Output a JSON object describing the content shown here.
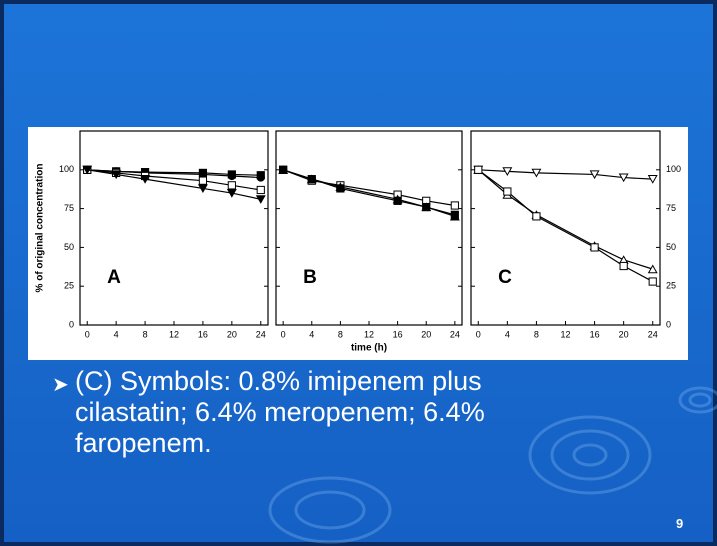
{
  "slide": {
    "bullet": "(C) Symbols:  0.8% imipenem plus cilastatin; 6.4% meropenem; 6.4% faropenem.",
    "page_number": "9"
  },
  "chart_data": [
    {
      "type": "line",
      "label": "A",
      "ylabel": "% of original concentration",
      "ytick_labels": "left",
      "xlim": [
        -1,
        25
      ],
      "xticks": [
        0,
        4,
        8,
        12,
        16,
        20,
        24
      ],
      "ylim": [
        0,
        125
      ],
      "yticks": [
        0,
        25,
        50,
        75,
        100
      ],
      "series": [
        {
          "marker": "square",
          "filled": true,
          "color": "#000000",
          "x": [
            0,
            4,
            8,
            16,
            20,
            24
          ],
          "values": [
            100,
            99,
            98.5,
            98,
            97,
            96.5
          ]
        },
        {
          "marker": "circle",
          "filled": true,
          "color": "#000000",
          "x": [
            0,
            4,
            8,
            16,
            20,
            24
          ],
          "values": [
            100,
            99,
            98,
            97,
            96,
            95
          ]
        },
        {
          "marker": "square",
          "filled": false,
          "color": "#000000",
          "x": [
            0,
            4,
            8,
            16,
            20,
            24
          ],
          "values": [
            100,
            98,
            96,
            93,
            90,
            87
          ]
        },
        {
          "marker": "triangle-down",
          "filled": true,
          "color": "#000000",
          "x": [
            0,
            4,
            8,
            16,
            20,
            24
          ],
          "values": [
            100,
            97,
            94,
            88,
            85,
            81
          ]
        }
      ]
    },
    {
      "type": "line",
      "label": "B",
      "xlabel": "time (h)",
      "ytick_labels": "none",
      "xlim": [
        -1,
        25
      ],
      "xticks": [
        0,
        4,
        8,
        12,
        16,
        20,
        24
      ],
      "ylim": [
        0,
        125
      ],
      "yticks": [
        0,
        25,
        50,
        75,
        100
      ],
      "series": [
        {
          "marker": "square",
          "filled": false,
          "color": "#000000",
          "x": [
            0,
            4,
            8,
            16,
            20,
            24
          ],
          "values": [
            100,
            93,
            90,
            84,
            80,
            77
          ]
        },
        {
          "marker": "square",
          "filled": true,
          "color": "#000000",
          "x": [
            0,
            4,
            8,
            16,
            20,
            24
          ],
          "values": [
            100,
            94,
            88,
            80,
            76,
            71
          ]
        },
        {
          "marker": "triangle-up",
          "filled": true,
          "color": "#000000",
          "x": [
            0,
            4,
            8,
            16,
            20,
            24
          ],
          "values": [
            100,
            94,
            89,
            81,
            76,
            70
          ]
        }
      ]
    },
    {
      "type": "line",
      "label": "C",
      "ytick_labels": "right",
      "xlim": [
        -1,
        25
      ],
      "xticks": [
        0,
        4,
        8,
        12,
        16,
        20,
        24
      ],
      "ylim": [
        0,
        125
      ],
      "yticks": [
        0,
        25,
        50,
        75,
        100
      ],
      "series": [
        {
          "marker": "triangle-down",
          "filled": false,
          "color": "#000000",
          "x": [
            0,
            4,
            8,
            16,
            20,
            24
          ],
          "values": [
            100,
            99,
            98,
            97,
            95,
            94
          ]
        },
        {
          "marker": "triangle-up",
          "filled": false,
          "color": "#000000",
          "x": [
            0,
            4,
            8,
            16,
            20,
            24
          ],
          "values": [
            100,
            84,
            71,
            51,
            42,
            36
          ]
        },
        {
          "marker": "square",
          "filled": false,
          "color": "#000000",
          "x": [
            0,
            4,
            8,
            16,
            20,
            24
          ],
          "values": [
            100,
            86,
            70,
            50,
            38,
            28
          ]
        }
      ]
    }
  ]
}
